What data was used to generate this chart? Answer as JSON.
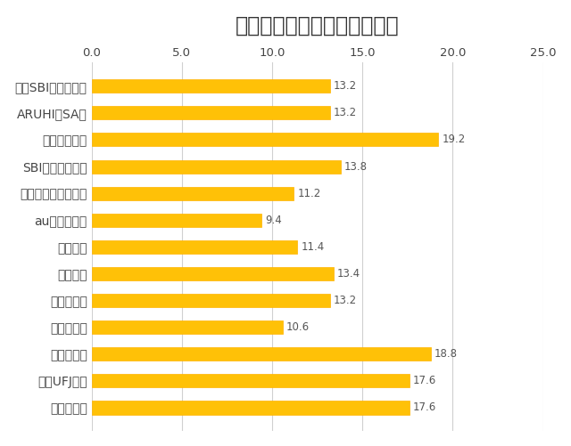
{
  "title": "敷居が高い住宅ローンである",
  "categories": [
    "りそな銀行",
    "三菱UFJ銀行",
    "みずほ銀行",
    "イオン銀行",
    "ソニー銀行",
    "新生銀行",
    "楽天銀行",
    "auじぶん銀行",
    "ジャパンネット銀行",
    "SBIマネープラザ",
    "三井住友銀行",
    "ARUHI（SA）",
    "住信SBIネット銀行"
  ],
  "values": [
    17.6,
    17.6,
    18.8,
    10.6,
    13.2,
    13.4,
    11.4,
    9.4,
    11.2,
    13.8,
    19.2,
    13.2,
    13.2
  ],
  "bar_color": "#FFC107",
  "bar_edge_color": "#FFB300",
  "xlim": [
    0,
    25
  ],
  "xticks": [
    0.0,
    5.0,
    10.0,
    15.0,
    20.0,
    25.0
  ],
  "xtick_labels": [
    "0.0",
    "5.0",
    "10.0",
    "15.0",
    "20.0",
    "25.0"
  ],
  "background_color": "#FFFFFF",
  "grid_color": "#D0D0D0",
  "title_fontsize": 17,
  "label_fontsize": 10,
  "tick_fontsize": 9.5,
  "value_fontsize": 8.5,
  "bar_height": 0.5
}
